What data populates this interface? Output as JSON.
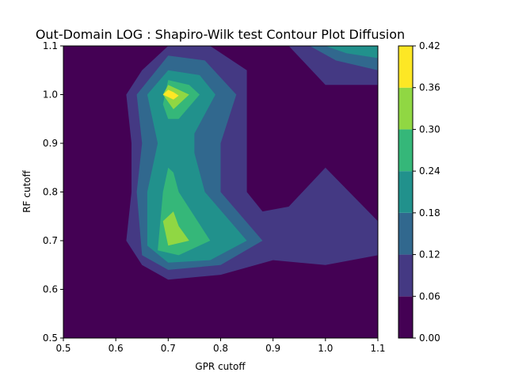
{
  "chart_data": {
    "type": "contour",
    "title": "Out-Domain LOG : Shapiro-Wilk test Contour Plot Diffusion",
    "xlabel": "GPR cutoff",
    "ylabel": "RF cutoff",
    "xlim": [
      0.5,
      1.1
    ],
    "ylim": [
      0.5,
      1.1
    ],
    "x_ticks": [
      "0.5",
      "0.6",
      "0.7",
      "0.8",
      "0.9",
      "1.0",
      "1.1"
    ],
    "y_ticks": [
      "0.5",
      "0.6",
      "0.7",
      "0.8",
      "0.9",
      "1.0",
      "1.1"
    ],
    "x_tick_values": [
      0.5,
      0.6,
      0.7,
      0.8,
      0.9,
      1.0,
      1.1
    ],
    "y_tick_values": [
      0.5,
      0.6,
      0.7,
      0.8,
      0.9,
      1.0,
      1.1
    ],
    "colorbar": {
      "levels": [
        0.0,
        0.06,
        0.12,
        0.18,
        0.24,
        0.3,
        0.36,
        0.42
      ],
      "tick_labels": [
        "0.00",
        "0.06",
        "0.12",
        "0.18",
        "0.24",
        "0.30",
        "0.36",
        "0.42"
      ],
      "colors": [
        "#440154",
        "#443983",
        "#31688e",
        "#21918c",
        "#35b779",
        "#90d743",
        "#fde725"
      ]
    },
    "level_regions": [
      {
        "level": 1,
        "polygons": [
          [
            [
              0.62,
              1.0
            ],
            [
              0.65,
              1.05
            ],
            [
              0.7,
              1.1
            ],
            [
              0.78,
              1.1
            ],
            [
              0.85,
              1.05
            ],
            [
              0.85,
              0.9
            ],
            [
              0.85,
              0.8
            ],
            [
              0.88,
              0.76
            ],
            [
              0.93,
              0.77
            ],
            [
              1.0,
              0.85
            ],
            [
              1.1,
              0.74
            ],
            [
              1.1,
              0.67
            ],
            [
              1.0,
              0.65
            ],
            [
              0.9,
              0.66
            ],
            [
              0.8,
              0.63
            ],
            [
              0.7,
              0.62
            ],
            [
              0.65,
              0.65
            ],
            [
              0.62,
              0.7
            ],
            [
              0.63,
              0.8
            ],
            [
              0.63,
              0.9
            ],
            [
              0.62,
              1.0
            ]
          ],
          [
            [
              0.93,
              1.1
            ],
            [
              1.1,
              1.1
            ],
            [
              1.1,
              1.02
            ],
            [
              1.0,
              1.02
            ],
            [
              0.93,
              1.1
            ]
          ]
        ]
      },
      {
        "level": 2,
        "polygons": [
          [
            [
              0.64,
              1.0
            ],
            [
              0.7,
              1.08
            ],
            [
              0.77,
              1.07
            ],
            [
              0.83,
              1.0
            ],
            [
              0.8,
              0.9
            ],
            [
              0.8,
              0.8
            ],
            [
              0.88,
              0.7
            ],
            [
              0.8,
              0.65
            ],
            [
              0.7,
              0.64
            ],
            [
              0.65,
              0.67
            ],
            [
              0.64,
              0.8
            ],
            [
              0.65,
              0.9
            ],
            [
              0.64,
              1.0
            ]
          ],
          [
            [
              0.97,
              1.1
            ],
            [
              1.1,
              1.1
            ],
            [
              1.1,
              1.05
            ],
            [
              1.02,
              1.07
            ],
            [
              0.97,
              1.1
            ]
          ]
        ]
      },
      {
        "level": 3,
        "polygons": [
          [
            [
              0.66,
              1.0
            ],
            [
              0.7,
              1.05
            ],
            [
              0.76,
              1.04
            ],
            [
              0.79,
              1.0
            ],
            [
              0.75,
              0.92
            ],
            [
              0.75,
              0.88
            ],
            [
              0.77,
              0.8
            ],
            [
              0.85,
              0.7
            ],
            [
              0.78,
              0.66
            ],
            [
              0.7,
              0.655
            ],
            [
              0.66,
              0.69
            ],
            [
              0.66,
              0.8
            ],
            [
              0.68,
              0.9
            ],
            [
              0.66,
              1.0
            ]
          ],
          [
            [
              1.0,
              1.1
            ],
            [
              1.1,
              1.1
            ],
            [
              1.1,
              1.075
            ],
            [
              1.04,
              1.085
            ],
            [
              1.0,
              1.1
            ]
          ]
        ]
      },
      {
        "level": 4,
        "polygons": [
          [
            [
              0.69,
              0.98
            ],
            [
              0.7,
              1.03
            ],
            [
              0.74,
              1.02
            ],
            [
              0.76,
              1.0
            ],
            [
              0.72,
              0.95
            ],
            [
              0.7,
              0.95
            ],
            [
              0.69,
              0.98
            ]
          ],
          [
            [
              0.69,
              0.8
            ],
            [
              0.7,
              0.85
            ],
            [
              0.71,
              0.84
            ],
            [
              0.72,
              0.8
            ],
            [
              0.78,
              0.7
            ],
            [
              0.72,
              0.67
            ],
            [
              0.68,
              0.68
            ],
            [
              0.69,
              0.8
            ]
          ]
        ]
      },
      {
        "level": 5,
        "polygons": [
          [
            [
              0.69,
              1.0
            ],
            [
              0.7,
              1.02
            ],
            [
              0.72,
              1.01
            ],
            [
              0.74,
              1.0
            ],
            [
              0.71,
              0.97
            ],
            [
              0.69,
              1.0
            ]
          ],
          [
            [
              0.69,
              0.74
            ],
            [
              0.71,
              0.76
            ],
            [
              0.72,
              0.73
            ],
            [
              0.74,
              0.7
            ],
            [
              0.7,
              0.69
            ],
            [
              0.69,
              0.74
            ]
          ]
        ]
      },
      {
        "level": 6,
        "polygons": [
          [
            [
              0.69,
              1.0
            ],
            [
              0.7,
              1.01
            ],
            [
              0.71,
              1.005
            ],
            [
              0.72,
              0.998
            ],
            [
              0.71,
              0.99
            ],
            [
              0.69,
              1.0
            ]
          ]
        ]
      }
    ]
  }
}
